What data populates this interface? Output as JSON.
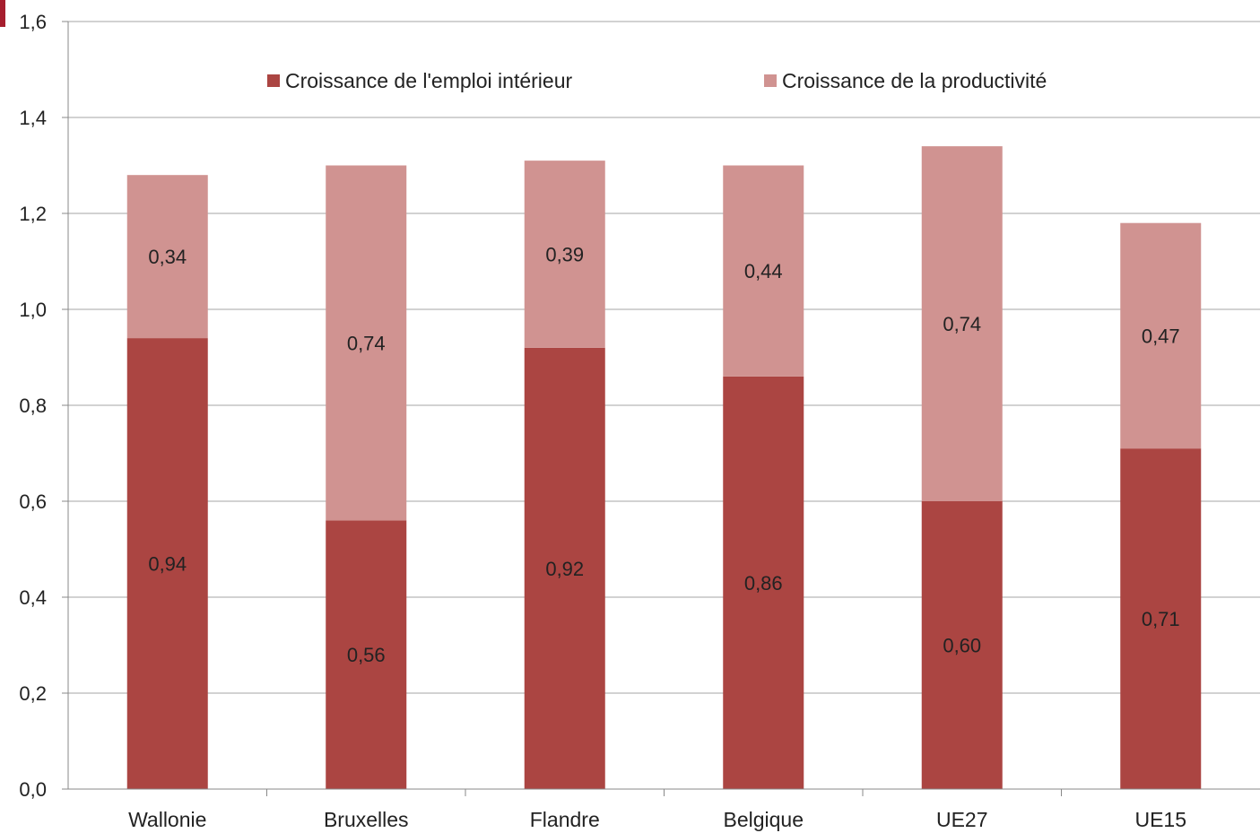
{
  "chart_data": {
    "type": "bar",
    "stacked": true,
    "categories": [
      "Wallonie",
      "Bruxelles",
      "Flandre",
      "Belgique",
      "UE27",
      "UE15"
    ],
    "series": [
      {
        "name": "Croissance de l'emploi intérieur",
        "values": [
          0.94,
          0.56,
          0.92,
          0.86,
          0.6,
          0.71
        ],
        "labels": [
          "0,94",
          "0,56",
          "0,92",
          "0,86",
          "0,60",
          "0,71"
        ],
        "color": "#ab4542"
      },
      {
        "name": "Croissance de la productivité",
        "values": [
          0.34,
          0.74,
          0.39,
          0.44,
          0.74,
          0.47
        ],
        "labels": [
          "0,34",
          "0,74",
          "0,39",
          "0,44",
          "0,74",
          "0,47"
        ],
        "color": "#d09391"
      }
    ],
    "ylim": [
      0,
      1.6
    ],
    "yticks": [
      0,
      0.2,
      0.4,
      0.6,
      0.8,
      1.0,
      1.2,
      1.4,
      1.6
    ],
    "ytick_labels": [
      "0,0",
      "0,2",
      "0,4",
      "0,6",
      "0,8",
      "1,0",
      "1,2",
      "1,4",
      "1,6"
    ],
    "grid": true,
    "legend_position": "top",
    "gridline_color": "#a6a6a6",
    "axis_color": "#888888"
  }
}
